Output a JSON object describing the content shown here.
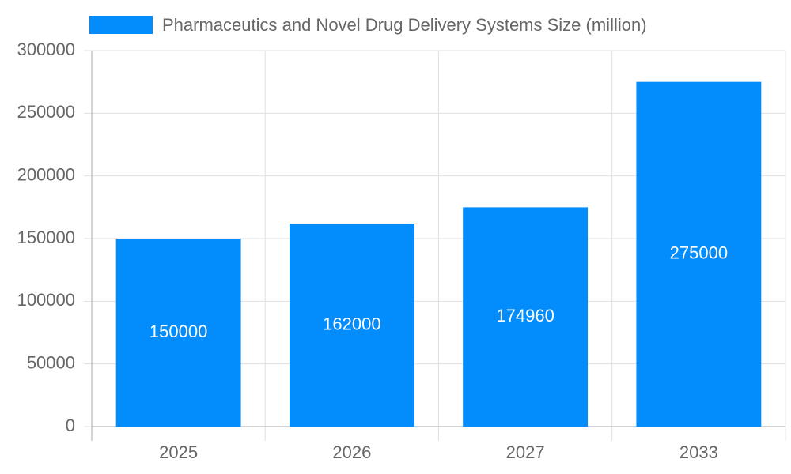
{
  "chart_data": {
    "type": "bar",
    "categories": [
      "2025",
      "2026",
      "2027",
      "2033"
    ],
    "series": [
      {
        "name": "Pharmaceutics and Novel Drug Delivery Systems Size (million)",
        "color": "#038cfc",
        "values": [
          150000,
          162000,
          174960,
          275000
        ]
      }
    ],
    "ylim": [
      0,
      300000
    ],
    "yticks": [
      0,
      50000,
      100000,
      150000,
      200000,
      250000,
      300000
    ],
    "grid": true,
    "legend": "top"
  }
}
